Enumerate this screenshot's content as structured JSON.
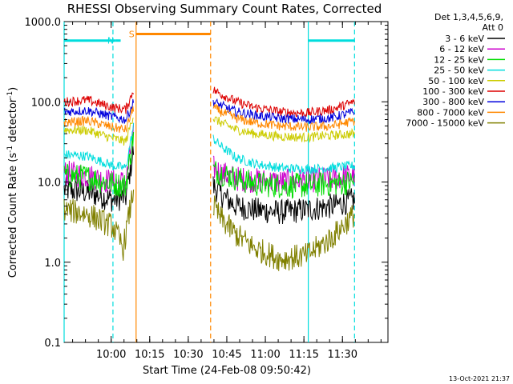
{
  "chart_data": {
    "type": "line",
    "title": "RHESSI Observing Summary Count Rates, Corrected",
    "xlabel": "Start Time (24-Feb-08 09:50:42)",
    "ylabel_main": "Corrected Count Rate (s",
    "ylabel_sup1": "-1",
    "ylabel_mid": " detector",
    "ylabel_sup2": "-1",
    "ylabel_end": ")",
    "yscale": "log",
    "ylim": [
      0.1,
      1000
    ],
    "xlim_minutes": [
      -9,
      117
    ],
    "x_unit": "minutes after 09:50:42",
    "xticks": [
      {
        "m": 9.3,
        "label": "10:00"
      },
      {
        "m": 24.3,
        "label": "10:15"
      },
      {
        "m": 39.3,
        "label": "10:30"
      },
      {
        "m": 54.3,
        "label": "10:45"
      },
      {
        "m": 69.3,
        "label": "11:00"
      },
      {
        "m": 84.3,
        "label": "11:15"
      },
      {
        "m": 99.3,
        "label": "11:30"
      }
    ],
    "yticks": [
      {
        "v": 0.1,
        "label": "0.1"
      },
      {
        "v": 1,
        "label": "1.0"
      },
      {
        "v": 10,
        "label": "10.0"
      },
      {
        "v": 100,
        "label": "100.0"
      },
      {
        "v": 1000,
        "label": "1000.0"
      }
    ],
    "legend_header": [
      "Det 1,3,4,5,6,9,",
      "Att 0"
    ],
    "series": [
      {
        "name": "3 - 6 keV",
        "color": "#000000",
        "seg1": [
          [
            -9,
            8
          ],
          [
            0,
            7.5
          ],
          [
            10,
            6
          ],
          [
            15,
            6.5
          ],
          [
            18,
            25
          ]
        ],
        "seg2": [
          [
            49,
            9
          ],
          [
            52,
            7
          ],
          [
            58,
            5
          ],
          [
            65,
            4.5
          ],
          [
            75,
            4.2
          ],
          [
            85,
            4.5
          ],
          [
            95,
            5
          ],
          [
            104,
            6
          ]
        ]
      },
      {
        "name": "6 - 12 keV",
        "color": "#cc00cc",
        "seg1": [
          [
            -9,
            13
          ],
          [
            0,
            12
          ],
          [
            10,
            10
          ],
          [
            15,
            10
          ],
          [
            18,
            40
          ]
        ],
        "seg2": [
          [
            49,
            15
          ],
          [
            52,
            13
          ],
          [
            58,
            11
          ],
          [
            65,
            10.5
          ],
          [
            75,
            10
          ],
          [
            85,
            10.5
          ],
          [
            95,
            11
          ],
          [
            104,
            12
          ]
        ]
      },
      {
        "name": "12 - 25 keV",
        "color": "#00dd00",
        "seg1": [
          [
            -9,
            12
          ],
          [
            0,
            11.5
          ],
          [
            10,
            9.5
          ],
          [
            15,
            9
          ],
          [
            18,
            40
          ]
        ],
        "seg2": [
          [
            49,
            14
          ],
          [
            52,
            13
          ],
          [
            58,
            11
          ],
          [
            65,
            9.5
          ],
          [
            75,
            9
          ],
          [
            85,
            9
          ],
          [
            95,
            9.5
          ],
          [
            104,
            10
          ]
        ]
      },
      {
        "name": "25 - 50 keV",
        "color": "#00dddd",
        "seg1": [
          [
            -9,
            22
          ],
          [
            0,
            21
          ],
          [
            10,
            16
          ],
          [
            15,
            15
          ],
          [
            18,
            50
          ]
        ],
        "seg2": [
          [
            49,
            35
          ],
          [
            52,
            28
          ],
          [
            58,
            20
          ],
          [
            65,
            17
          ],
          [
            75,
            15
          ],
          [
            85,
            14.5
          ],
          [
            95,
            15
          ],
          [
            104,
            16
          ]
        ]
      },
      {
        "name": "50 - 100 keV",
        "color": "#cccc00",
        "seg1": [
          [
            -9,
            45
          ],
          [
            0,
            44
          ],
          [
            10,
            35
          ],
          [
            15,
            32
          ],
          [
            18,
            70
          ]
        ],
        "seg2": [
          [
            49,
            62
          ],
          [
            52,
            55
          ],
          [
            58,
            45
          ],
          [
            65,
            40
          ],
          [
            75,
            37
          ],
          [
            85,
            36
          ],
          [
            95,
            38
          ],
          [
            104,
            40
          ]
        ]
      },
      {
        "name": "100 - 300 keV",
        "color": "#dd0000",
        "seg1": [
          [
            -9,
            100
          ],
          [
            0,
            105
          ],
          [
            10,
            85
          ],
          [
            15,
            80
          ],
          [
            18,
            140
          ]
        ],
        "seg2": [
          [
            49,
            140
          ],
          [
            52,
            125
          ],
          [
            58,
            100
          ],
          [
            65,
            85
          ],
          [
            75,
            75
          ],
          [
            85,
            72
          ],
          [
            95,
            80
          ],
          [
            104,
            100
          ]
        ]
      },
      {
        "name": "300 - 800 keV",
        "color": "#0000dd",
        "seg1": [
          [
            -9,
            75
          ],
          [
            0,
            78
          ],
          [
            10,
            65
          ],
          [
            15,
            60
          ],
          [
            18,
            100
          ]
        ],
        "seg2": [
          [
            49,
            100
          ],
          [
            52,
            90
          ],
          [
            58,
            75
          ],
          [
            65,
            68
          ],
          [
            75,
            62
          ],
          [
            85,
            60
          ],
          [
            95,
            63
          ],
          [
            104,
            75
          ]
        ]
      },
      {
        "name": "800 - 7000 keV",
        "color": "#ff8800",
        "seg1": [
          [
            -9,
            55
          ],
          [
            0,
            58
          ],
          [
            10,
            48
          ],
          [
            15,
            45
          ],
          [
            18,
            85
          ]
        ],
        "seg2": [
          [
            49,
            85
          ],
          [
            52,
            75
          ],
          [
            58,
            62
          ],
          [
            65,
            55
          ],
          [
            75,
            50
          ],
          [
            85,
            48
          ],
          [
            95,
            50
          ],
          [
            104,
            58
          ]
        ]
      },
      {
        "name": "7000 - 15000 keV",
        "color": "#808000",
        "seg1": [
          [
            -9,
            4.5
          ],
          [
            0,
            4
          ],
          [
            10,
            2.8
          ],
          [
            14,
            1.5
          ],
          [
            18,
            8
          ]
        ],
        "seg2": [
          [
            49,
            5
          ],
          [
            52,
            3.5
          ],
          [
            58,
            2.2
          ],
          [
            65,
            1.5
          ],
          [
            75,
            1.1
          ],
          [
            85,
            1.2
          ],
          [
            95,
            2
          ],
          [
            104,
            4
          ]
        ]
      }
    ],
    "flags": [
      {
        "label": "",
        "color": "#00dddd",
        "start": -9,
        "end": 11,
        "level": 580
      },
      {
        "label": "N",
        "color": "#00dddd",
        "start": 11,
        "end": 13,
        "level": 580
      },
      {
        "label": "S",
        "color": "#ff8800",
        "start": 19,
        "end": 48,
        "level": 700
      },
      {
        "label": "",
        "color": "#00dddd",
        "start": 86,
        "end": 104,
        "level": 580
      }
    ],
    "vlines": [
      {
        "m": -9,
        "color": "#00dddd",
        "style": "solid"
      },
      {
        "m": 10,
        "color": "#00dddd",
        "style": "dashed"
      },
      {
        "m": 19,
        "color": "#ff8800",
        "style": "solid"
      },
      {
        "m": 48,
        "color": "#ff8800",
        "style": "dashed"
      },
      {
        "m": 86,
        "color": "#00dddd",
        "style": "solid"
      },
      {
        "m": 104,
        "color": "#00dddd",
        "style": "dashed"
      }
    ],
    "footer_stamp": "13-Oct-2021 21:37"
  }
}
